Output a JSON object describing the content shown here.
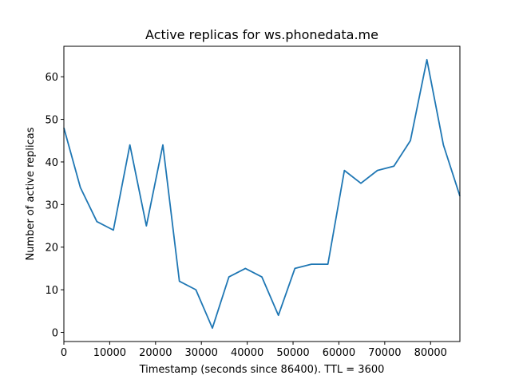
{
  "chart_data": {
    "type": "line",
    "title": "Active replicas for ws.phonedata.me",
    "xlabel": "Timestamp (seconds since 86400). TTL = 3600",
    "ylabel": "Number of active replicas",
    "xlim": [
      0,
      86400
    ],
    "ylim": [
      -2.15,
      67.15
    ],
    "xticks": [
      0,
      10000,
      20000,
      30000,
      40000,
      50000,
      60000,
      70000,
      80000
    ],
    "yticks": [
      0,
      10,
      20,
      30,
      40,
      50,
      60
    ],
    "grid": false,
    "series": [
      {
        "color": "#1f77b4",
        "x": [
          0,
          3600,
          7200,
          10800,
          14400,
          18000,
          21600,
          25200,
          28800,
          32400,
          36000,
          39600,
          43200,
          46800,
          50400,
          54000,
          57600,
          61200,
          64800,
          68400,
          72000,
          75600,
          79200,
          82800,
          86400
        ],
        "y": [
          48,
          34,
          26,
          24,
          44,
          25,
          44,
          12,
          10,
          1,
          13,
          15,
          13,
          4,
          15,
          16,
          16,
          38,
          35,
          38,
          39,
          45,
          64,
          44,
          32
        ]
      }
    ]
  }
}
